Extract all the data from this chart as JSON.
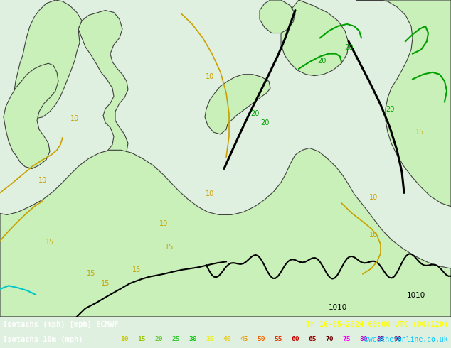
{
  "title_left": "Isotachs (mph) [mph] ECMWF",
  "title_right": "Th 16-05-2024 00:00 UTC (00+120)",
  "legend_label": "Isotachs 10m (mph)",
  "copyright": "©weatheronline.co.uk",
  "bottom_bg": "#000028",
  "map_sea_color": "#e8e8f0",
  "map_land_light": "#c8f0c0",
  "map_land_mid": "#b0e8a0",
  "legend_values": [
    10,
    15,
    20,
    25,
    30,
    35,
    40,
    45,
    50,
    55,
    60,
    65,
    70,
    75,
    80,
    85,
    90
  ],
  "legend_colors": [
    "#c8c800",
    "#96c800",
    "#64c832",
    "#32c832",
    "#00c800",
    "#f0f000",
    "#f0c800",
    "#f09600",
    "#f06400",
    "#f03200",
    "#c80000",
    "#960000",
    "#640000",
    "#ff00ff",
    "#c800c8",
    "#960096",
    "#640064"
  ],
  "figsize": [
    6.34,
    4.9
  ],
  "dpi": 100
}
